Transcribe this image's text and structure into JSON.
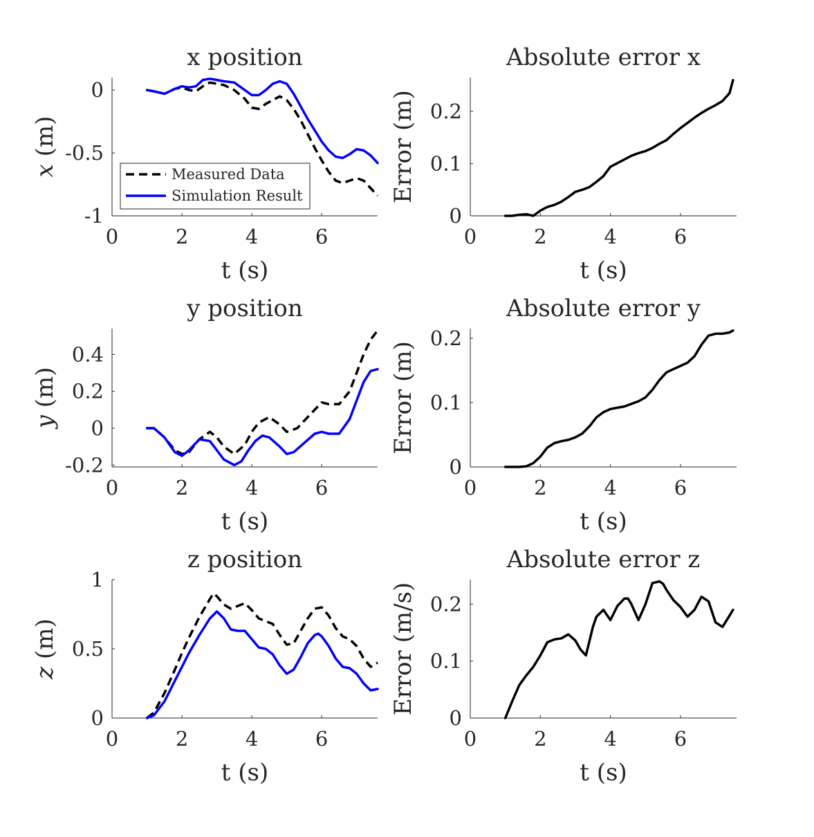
{
  "chart_data": [
    {
      "type": "line",
      "title": "x position",
      "xlabel": "t (s)",
      "ylabel": "x (m)",
      "ylabel_italic_symbol": "x",
      "ylabel_unit": " (m)",
      "xlim": [
        0,
        7.6
      ],
      "ylim": [
        -1,
        0.1
      ],
      "xticks": [
        0,
        2,
        4,
        6
      ],
      "yticks": [
        0,
        -0.5,
        -1
      ],
      "ytick_labels": [
        "0",
        "-0.5",
        "-1"
      ],
      "legend": {
        "placement": "lower-left",
        "entries": [
          "Measured Data",
          "Simulation Result"
        ]
      },
      "series": [
        {
          "name": "Measured Data",
          "style": "dashed",
          "color": "#000000",
          "x": [
            1.0,
            1.2,
            1.5,
            1.8,
            2.0,
            2.2,
            2.4,
            2.6,
            2.8,
            3.0,
            3.2,
            3.5,
            3.8,
            4.0,
            4.2,
            4.4,
            4.6,
            4.8,
            5.0,
            5.2,
            5.4,
            5.6,
            5.8,
            6.0,
            6.2,
            6.4,
            6.6,
            6.8,
            7.0,
            7.2,
            7.4,
            7.6
          ],
          "y": [
            0.0,
            -0.01,
            -0.03,
            0.01,
            0.02,
            0.0,
            -0.01,
            0.03,
            0.06,
            0.05,
            0.04,
            0.0,
            -0.07,
            -0.14,
            -0.15,
            -0.11,
            -0.08,
            -0.05,
            -0.08,
            -0.15,
            -0.24,
            -0.35,
            -0.46,
            -0.56,
            -0.65,
            -0.72,
            -0.74,
            -0.72,
            -0.7,
            -0.72,
            -0.78,
            -0.84
          ]
        },
        {
          "name": "Simulation Result",
          "style": "solid",
          "color": "#0000ff",
          "x": [
            1.0,
            1.2,
            1.5,
            1.8,
            2.0,
            2.2,
            2.4,
            2.6,
            2.8,
            3.0,
            3.2,
            3.5,
            3.8,
            4.0,
            4.2,
            4.4,
            4.6,
            4.8,
            5.0,
            5.2,
            5.4,
            5.6,
            5.8,
            6.0,
            6.2,
            6.4,
            6.6,
            6.8,
            7.0,
            7.2,
            7.4,
            7.6
          ],
          "y": [
            0.0,
            -0.01,
            -0.03,
            0.01,
            0.03,
            0.02,
            0.03,
            0.08,
            0.09,
            0.08,
            0.07,
            0.06,
            0.0,
            -0.04,
            -0.04,
            0.0,
            0.05,
            0.07,
            0.05,
            -0.03,
            -0.13,
            -0.23,
            -0.32,
            -0.41,
            -0.48,
            -0.53,
            -0.54,
            -0.51,
            -0.47,
            -0.48,
            -0.52,
            -0.58
          ]
        }
      ]
    },
    {
      "type": "line",
      "title": "Absolute error x",
      "xlabel": "t (s)",
      "ylabel": "Error (m)",
      "xlim": [
        0,
        7.6
      ],
      "ylim": [
        0,
        0.265
      ],
      "xticks": [
        0,
        2,
        4,
        6
      ],
      "yticks": [
        0,
        0.1,
        0.2
      ],
      "ytick_labels": [
        "0",
        "0.1",
        "0.2"
      ],
      "series": [
        {
          "style": "solid",
          "color": "#000000",
          "x": [
            1.0,
            1.2,
            1.4,
            1.6,
            1.8,
            2.0,
            2.2,
            2.4,
            2.6,
            2.8,
            3.0,
            3.2,
            3.4,
            3.6,
            3.8,
            4.0,
            4.2,
            4.4,
            4.6,
            4.8,
            5.0,
            5.2,
            5.4,
            5.6,
            5.8,
            6.0,
            6.2,
            6.4,
            6.6,
            6.8,
            7.0,
            7.2,
            7.4,
            7.5
          ],
          "y": [
            0.0,
            0.0,
            0.002,
            0.003,
            0.0,
            0.01,
            0.017,
            0.021,
            0.027,
            0.036,
            0.046,
            0.05,
            0.055,
            0.065,
            0.076,
            0.094,
            0.101,
            0.108,
            0.115,
            0.12,
            0.124,
            0.13,
            0.138,
            0.145,
            0.157,
            0.168,
            0.178,
            0.188,
            0.197,
            0.205,
            0.212,
            0.22,
            0.235,
            0.26
          ]
        }
      ]
    },
    {
      "type": "line",
      "title": "y position",
      "xlabel": "t (s)",
      "ylabel": "y (m)",
      "ylabel_italic_symbol": "y",
      "ylabel_unit": " (m)",
      "xlim": [
        0,
        7.6
      ],
      "ylim": [
        -0.21,
        0.54
      ],
      "xticks": [
        0,
        2,
        4,
        6
      ],
      "yticks": [
        0.4,
        0.2,
        0,
        -0.2
      ],
      "ytick_labels": [
        "0.4",
        "0.2",
        "0",
        "-0.2"
      ],
      "series": [
        {
          "name": "Measured Data",
          "style": "dashed",
          "color": "#000000",
          "x": [
            1.0,
            1.2,
            1.5,
            1.8,
            2.0,
            2.2,
            2.5,
            2.8,
            3.0,
            3.2,
            3.5,
            3.8,
            4.0,
            4.2,
            4.5,
            4.8,
            5.0,
            5.3,
            5.6,
            5.8,
            6.0,
            6.2,
            6.5,
            6.8,
            7.0,
            7.2,
            7.4,
            7.6
          ],
          "y": [
            0.0,
            0.0,
            -0.05,
            -0.12,
            -0.14,
            -0.13,
            -0.06,
            -0.02,
            -0.05,
            -0.1,
            -0.14,
            -0.09,
            -0.02,
            0.03,
            0.06,
            0.02,
            -0.02,
            0.0,
            0.06,
            0.1,
            0.14,
            0.13,
            0.13,
            0.2,
            0.3,
            0.4,
            0.48,
            0.53
          ]
        },
        {
          "name": "Simulation Result",
          "style": "solid",
          "color": "#0000ff",
          "x": [
            1.0,
            1.2,
            1.5,
            1.8,
            2.0,
            2.2,
            2.5,
            2.8,
            3.0,
            3.2,
            3.5,
            3.7,
            3.9,
            4.1,
            4.3,
            4.5,
            4.8,
            5.0,
            5.2,
            5.5,
            5.8,
            6.0,
            6.2,
            6.5,
            6.8,
            7.0,
            7.2,
            7.4,
            7.6
          ],
          "y": [
            0.0,
            0.0,
            -0.05,
            -0.13,
            -0.15,
            -0.12,
            -0.06,
            -0.07,
            -0.12,
            -0.17,
            -0.2,
            -0.18,
            -0.12,
            -0.07,
            -0.04,
            -0.05,
            -0.1,
            -0.14,
            -0.13,
            -0.08,
            -0.03,
            -0.02,
            -0.03,
            -0.03,
            0.05,
            0.15,
            0.25,
            0.31,
            0.32
          ]
        }
      ]
    },
    {
      "type": "line",
      "title": "Absolute error y",
      "xlabel": "t (s)",
      "ylabel": "Error (m)",
      "xlim": [
        0,
        7.6
      ],
      "ylim": [
        0,
        0.215
      ],
      "xticks": [
        0,
        2,
        4,
        6
      ],
      "yticks": [
        0,
        0.1,
        0.2
      ],
      "ytick_labels": [
        "0",
        "0.1",
        "0.2"
      ],
      "series": [
        {
          "style": "solid",
          "color": "#000000",
          "x": [
            1.0,
            1.2,
            1.4,
            1.6,
            1.8,
            2.0,
            2.2,
            2.4,
            2.6,
            2.8,
            3.0,
            3.2,
            3.4,
            3.6,
            3.8,
            4.0,
            4.2,
            4.4,
            4.6,
            4.8,
            5.0,
            5.2,
            5.4,
            5.6,
            5.8,
            6.0,
            6.2,
            6.4,
            6.6,
            6.8,
            7.0,
            7.2,
            7.4,
            7.5
          ],
          "y": [
            0.0,
            0.0,
            0.0,
            0.001,
            0.006,
            0.016,
            0.03,
            0.037,
            0.04,
            0.042,
            0.046,
            0.052,
            0.063,
            0.077,
            0.085,
            0.09,
            0.092,
            0.094,
            0.098,
            0.102,
            0.108,
            0.12,
            0.135,
            0.147,
            0.152,
            0.157,
            0.162,
            0.172,
            0.19,
            0.204,
            0.207,
            0.207,
            0.209,
            0.212
          ]
        }
      ]
    },
    {
      "type": "line",
      "title": "z position",
      "xlabel": "t (s)",
      "ylabel": "z (m)",
      "ylabel_italic_symbol": "z",
      "ylabel_unit": " (m)",
      "xlim": [
        0,
        7.6
      ],
      "ylim": [
        0,
        1
      ],
      "xticks": [
        0,
        2,
        4,
        6
      ],
      "yticks": [
        1,
        0.5,
        0
      ],
      "ytick_labels": [
        "1",
        "0.5",
        "0"
      ],
      "series": [
        {
          "name": "Measured Data",
          "style": "dashed",
          "color": "#000000",
          "x": [
            1.0,
            1.2,
            1.5,
            1.8,
            2.0,
            2.2,
            2.5,
            2.8,
            2.9,
            3.0,
            3.2,
            3.4,
            3.6,
            3.8,
            4.0,
            4.2,
            4.4,
            4.6,
            4.8,
            5.0,
            5.2,
            5.4,
            5.6,
            5.8,
            6.0,
            6.2,
            6.4,
            6.6,
            6.8,
            7.0,
            7.2,
            7.4,
            7.6
          ],
          "y": [
            0.0,
            0.04,
            0.18,
            0.35,
            0.47,
            0.58,
            0.73,
            0.86,
            0.9,
            0.88,
            0.82,
            0.79,
            0.81,
            0.83,
            0.78,
            0.72,
            0.7,
            0.68,
            0.6,
            0.53,
            0.54,
            0.63,
            0.72,
            0.79,
            0.8,
            0.74,
            0.65,
            0.59,
            0.57,
            0.52,
            0.43,
            0.37,
            0.4
          ]
        },
        {
          "name": "Simulation Result",
          "style": "solid",
          "color": "#0000ff",
          "x": [
            1.0,
            1.2,
            1.5,
            1.8,
            2.0,
            2.2,
            2.5,
            2.8,
            3.0,
            3.2,
            3.4,
            3.6,
            3.8,
            4.0,
            4.2,
            4.4,
            4.6,
            4.8,
            5.0,
            5.2,
            5.4,
            5.6,
            5.8,
            5.9,
            6.0,
            6.2,
            6.4,
            6.6,
            6.8,
            7.0,
            7.2,
            7.4,
            7.6
          ],
          "y": [
            0.0,
            0.02,
            0.12,
            0.27,
            0.37,
            0.47,
            0.6,
            0.72,
            0.77,
            0.72,
            0.64,
            0.63,
            0.63,
            0.57,
            0.51,
            0.5,
            0.46,
            0.38,
            0.32,
            0.35,
            0.44,
            0.54,
            0.6,
            0.61,
            0.59,
            0.52,
            0.43,
            0.37,
            0.36,
            0.32,
            0.25,
            0.2,
            0.21
          ]
        }
      ]
    },
    {
      "type": "line",
      "title": "Absolute error z",
      "xlabel": "t (s)",
      "ylabel": "Error (m/s)",
      "xlim": [
        0,
        7.6
      ],
      "ylim": [
        0,
        0.243
      ],
      "xticks": [
        0,
        2,
        4,
        6
      ],
      "yticks": [
        0,
        0.1,
        0.2
      ],
      "ytick_labels": [
        "0",
        "0.1",
        "0.2"
      ],
      "series": [
        {
          "style": "solid",
          "color": "#000000",
          "x": [
            1.0,
            1.2,
            1.4,
            1.6,
            1.8,
            2.0,
            2.2,
            2.4,
            2.6,
            2.8,
            3.0,
            3.15,
            3.3,
            3.5,
            3.6,
            3.8,
            4.0,
            4.2,
            4.4,
            4.5,
            4.6,
            4.8,
            5.0,
            5.2,
            5.4,
            5.5,
            5.6,
            5.8,
            6.0,
            6.2,
            6.4,
            6.6,
            6.8,
            7.0,
            7.2,
            7.4,
            7.5
          ],
          "y": [
            0.0,
            0.03,
            0.058,
            0.075,
            0.09,
            0.11,
            0.133,
            0.138,
            0.14,
            0.147,
            0.136,
            0.12,
            0.11,
            0.16,
            0.178,
            0.19,
            0.172,
            0.197,
            0.21,
            0.21,
            0.2,
            0.172,
            0.2,
            0.237,
            0.24,
            0.236,
            0.225,
            0.207,
            0.195,
            0.178,
            0.19,
            0.213,
            0.205,
            0.168,
            0.16,
            0.18,
            0.19
          ]
        }
      ]
    }
  ]
}
